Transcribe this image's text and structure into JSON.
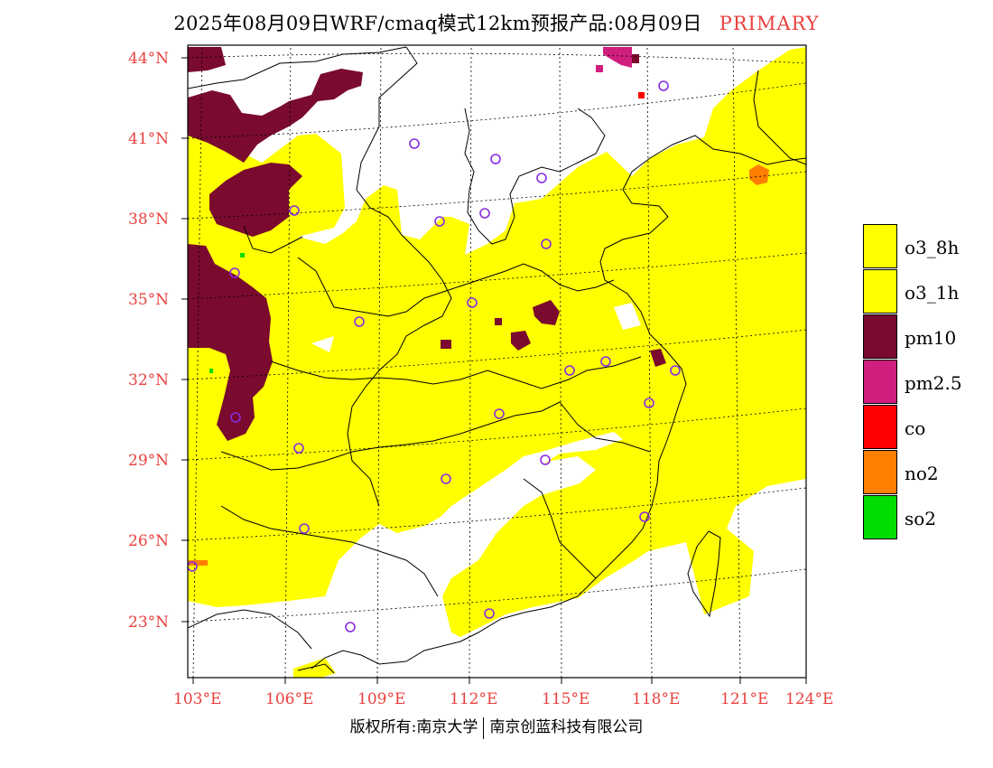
{
  "header": {
    "title": "2025年08月09日WRF/cmaq模式12km预报产品:08月09日",
    "tag": "PRIMARY"
  },
  "axes": {
    "lat_labels": [
      "44°N",
      "41°N",
      "38°N",
      "35°N",
      "32°N",
      "29°N",
      "26°N",
      "23°N"
    ],
    "lon_labels": [
      "103°E",
      "106°E",
      "109°E",
      "112°E",
      "115°E",
      "118°E",
      "121°E",
      "124°E"
    ]
  },
  "legend": {
    "items": [
      {
        "label": "o3_8h",
        "color": "#ffff00"
      },
      {
        "label": "o3_1h",
        "color": "#ffff00"
      },
      {
        "label": "pm10",
        "color": "#7a0a2e"
      },
      {
        "label": "pm2.5",
        "color": "#d01e7e"
      },
      {
        "label": "co",
        "color": "#ff0000"
      },
      {
        "label": "no2",
        "color": "#ff7f00"
      },
      {
        "label": "so2",
        "color": "#00dd00"
      }
    ]
  },
  "footer": {
    "left": "版权所有:南京大学",
    "right": "南京创蓝科技有限公司"
  },
  "colors": {
    "label_red": "#e8413e",
    "station_marker": "#8a2be2",
    "o3": "#ffff00",
    "pm10": "#7a0a2e",
    "pm25": "#d01e7e",
    "co": "#ff0000",
    "no2": "#ff7f00",
    "so2": "#00dd00"
  }
}
